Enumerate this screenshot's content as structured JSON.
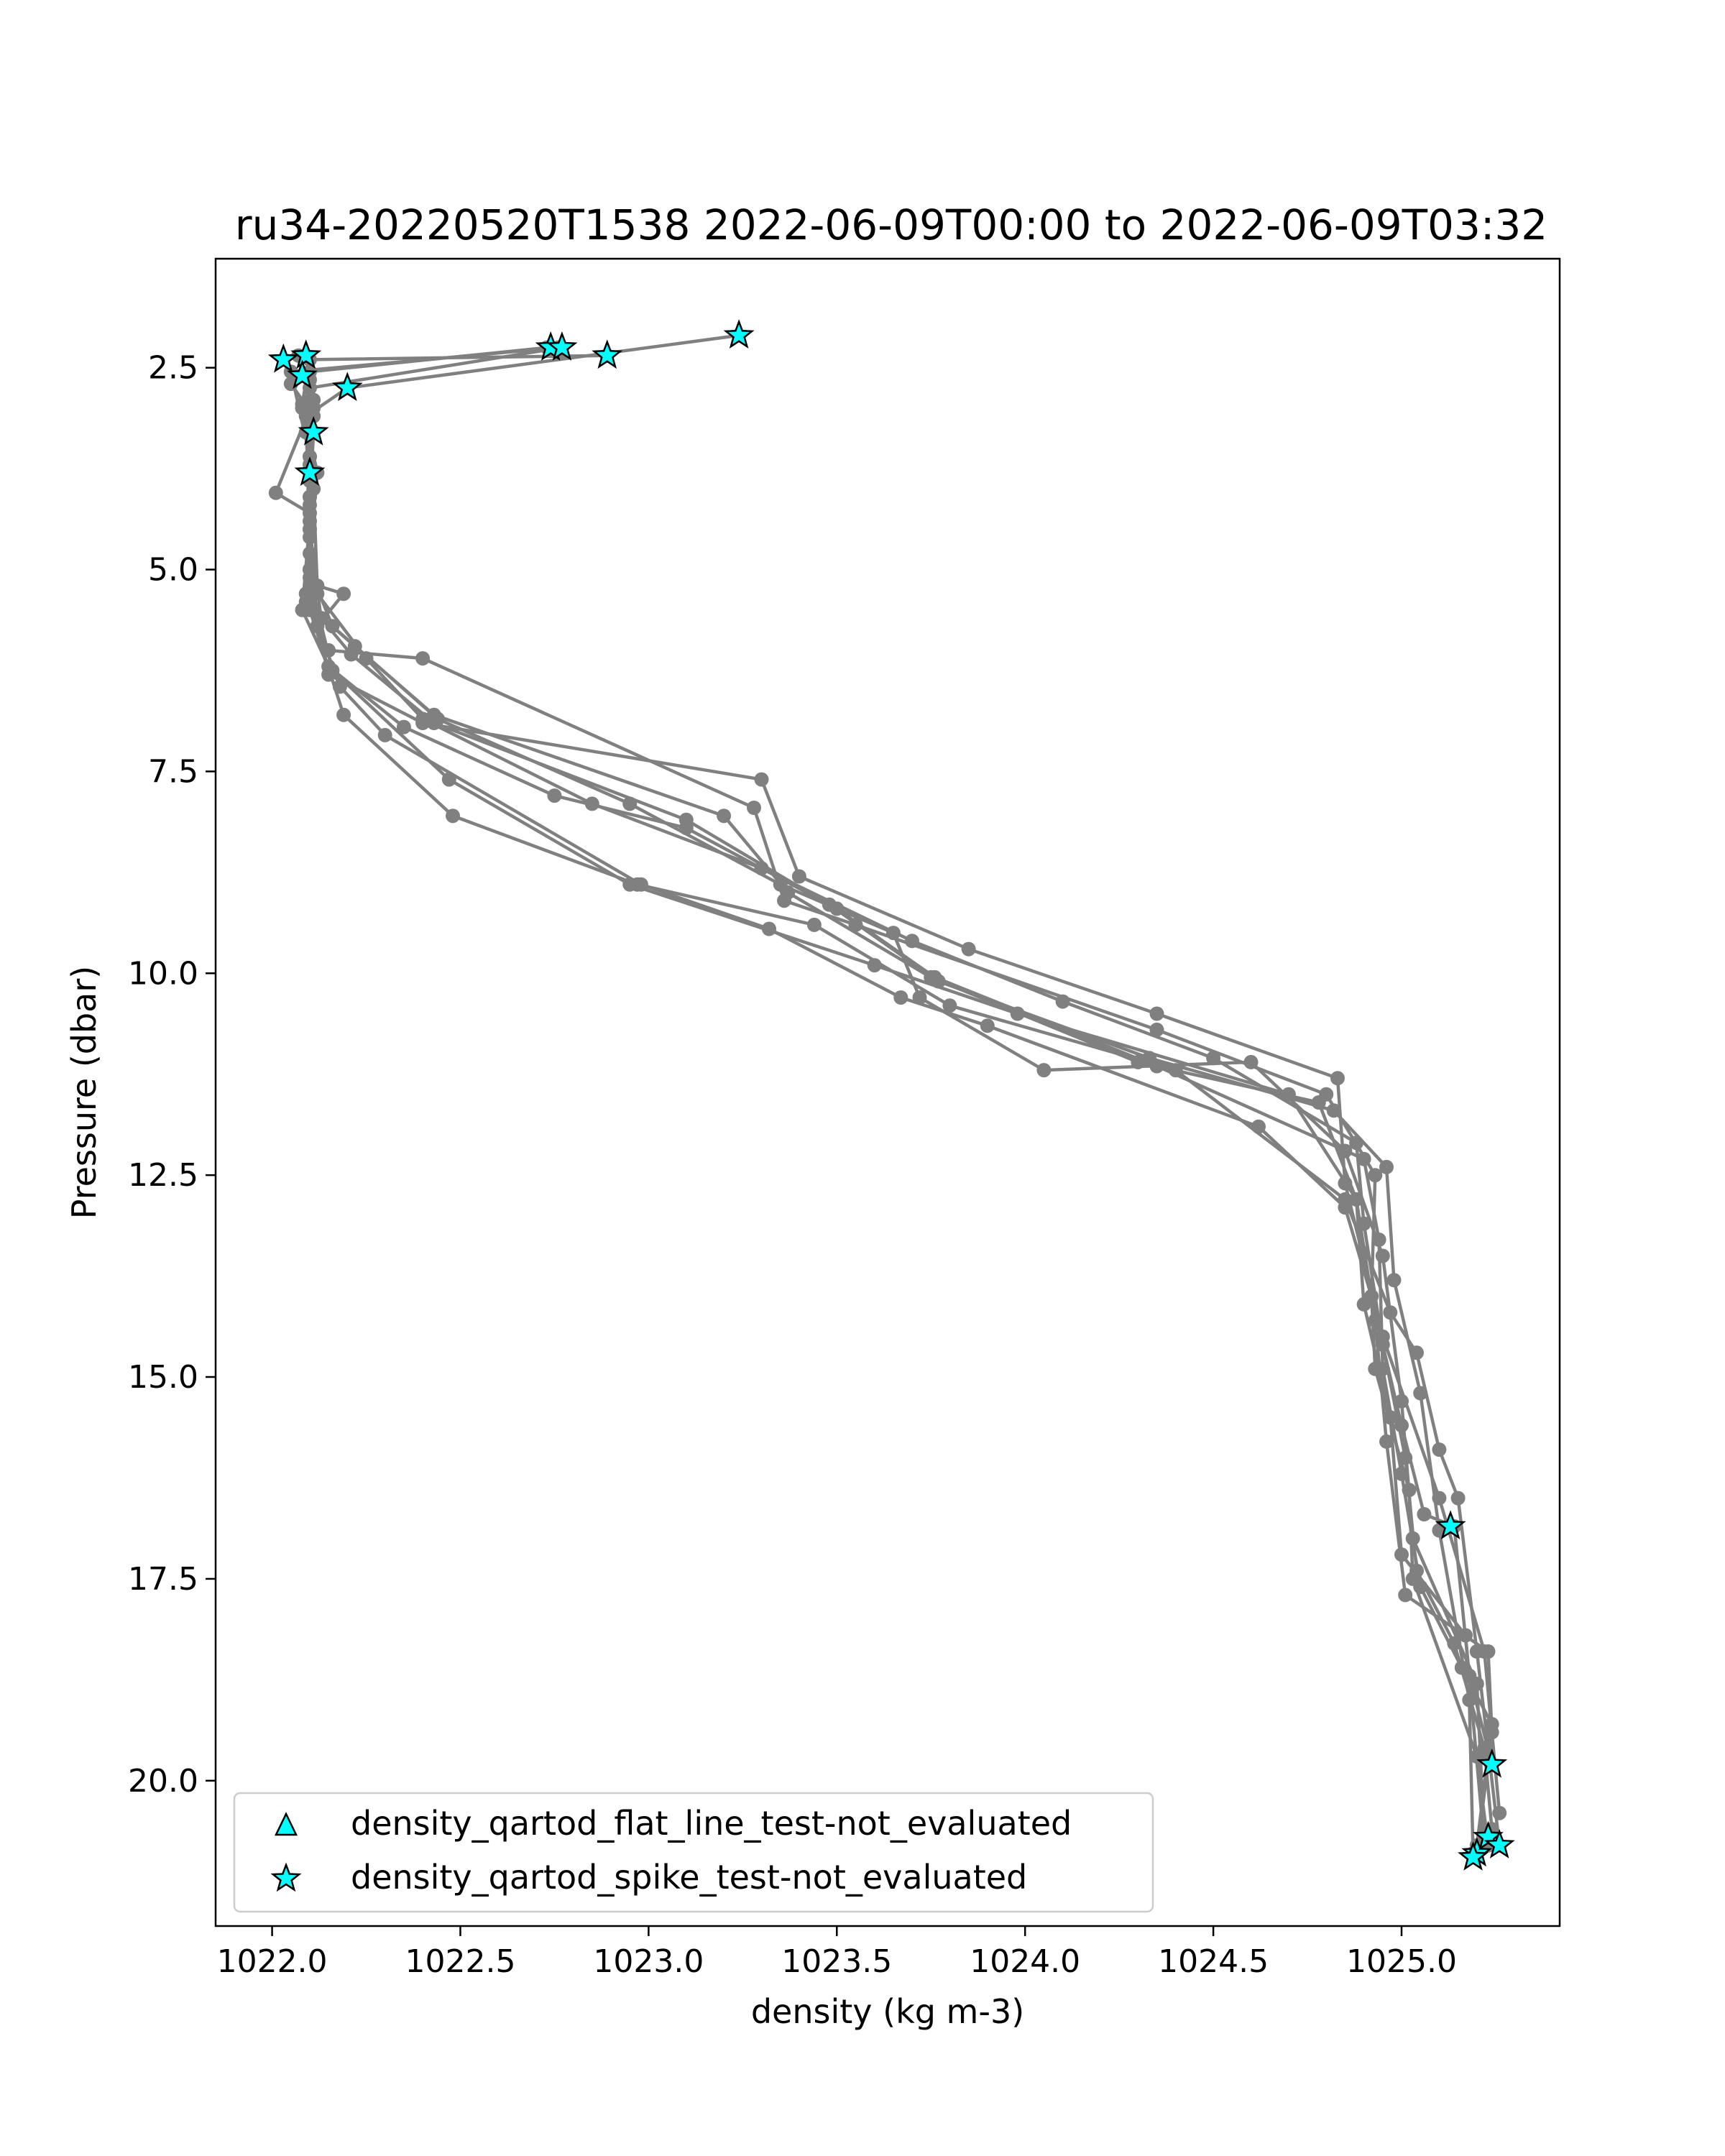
{
  "chart_data": {
    "type": "line",
    "title": "ru34-20220520T1538 2022-06-09T00:00 to 2022-06-09T03:32",
    "xlabel": "density (kg m-3)",
    "ylabel": "Pressure (dbar)",
    "xlim": [
      1021.85,
      1025.42
    ],
    "ylim": [
      21.8,
      1.15
    ],
    "y_inverted": true,
    "xticks": [
      1022.0,
      1022.5,
      1023.0,
      1023.5,
      1024.0,
      1024.5,
      1025.0
    ],
    "xtick_labels": [
      "1022.0",
      "1022.5",
      "1023.0",
      "1023.5",
      "1024.0",
      "1024.5",
      "1025.0"
    ],
    "yticks": [
      2.5,
      5.0,
      7.5,
      10.0,
      12.5,
      15.0,
      17.5,
      20.0
    ],
    "ytick_labels": [
      "2.5",
      "5.0",
      "7.5",
      "10.0",
      "12.5",
      "15.0",
      "17.5",
      "20.0"
    ],
    "grid": false,
    "legend_position": "lower-left",
    "colors": {
      "profile_line": "#808080",
      "marker_fill": "#00ffff",
      "marker_edge": "#000000"
    },
    "series": [
      {
        "points": [
          [
            1023.24,
            2.1
          ],
          [
            1022.2,
            2.75
          ],
          [
            1022.09,
            3.1
          ],
          [
            1022.11,
            4.0
          ],
          [
            1022.12,
            5.2
          ],
          [
            1022.19,
            5.3
          ],
          [
            1022.12,
            5.7
          ],
          [
            1022.15,
            6.3
          ],
          [
            1022.4,
            6.9
          ],
          [
            1023.3,
            7.6
          ],
          [
            1023.4,
            8.8
          ],
          [
            1023.85,
            9.7
          ],
          [
            1024.35,
            10.5
          ],
          [
            1024.83,
            11.3
          ],
          [
            1024.85,
            12.6
          ],
          [
            1024.95,
            14.5
          ],
          [
            1025.1,
            16.5
          ],
          [
            1025.22,
            18.4
          ],
          [
            1025.26,
            20.4
          ]
        ]
      },
      {
        "points": [
          [
            1022.76,
            2.25
          ],
          [
            1022.05,
            2.55
          ],
          [
            1022.1,
            3.6
          ],
          [
            1022.1,
            4.5
          ],
          [
            1022.09,
            5.4
          ],
          [
            1022.15,
            6.0
          ],
          [
            1022.4,
            6.1
          ],
          [
            1023.28,
            7.95
          ],
          [
            1023.36,
            9.1
          ],
          [
            1023.55,
            9.4
          ],
          [
            1024.35,
            10.7
          ],
          [
            1024.8,
            11.5
          ],
          [
            1024.93,
            12.5
          ],
          [
            1024.92,
            14.0
          ],
          [
            1025.0,
            15.6
          ],
          [
            1025.06,
            16.7
          ],
          [
            1025.14,
            16.85
          ],
          [
            1025.18,
            18.7
          ],
          [
            1025.24,
            19.8
          ]
        ]
      },
      {
        "points": [
          [
            1022.89,
            2.35
          ],
          [
            1022.1,
            2.4
          ],
          [
            1022.08,
            2.95
          ],
          [
            1022.12,
            3.8
          ],
          [
            1022.1,
            4.8
          ],
          [
            1022.11,
            5.5
          ],
          [
            1022.22,
            5.95
          ],
          [
            1022.43,
            6.8
          ],
          [
            1023.2,
            8.05
          ],
          [
            1023.37,
            9.0
          ],
          [
            1023.75,
            10.05
          ],
          [
            1024.3,
            11.1
          ],
          [
            1024.78,
            11.6
          ],
          [
            1024.88,
            12.8
          ],
          [
            1024.9,
            14.1
          ],
          [
            1024.97,
            15.5
          ],
          [
            1025.0,
            17.2
          ],
          [
            1025.17,
            18.2
          ],
          [
            1025.22,
            20.8
          ]
        ]
      },
      {
        "points": [
          [
            1022.73,
            2.25
          ],
          [
            1022.1,
            2.55
          ],
          [
            1022.1,
            3.3
          ],
          [
            1022.1,
            4.1
          ],
          [
            1022.1,
            5.0
          ],
          [
            1022.16,
            5.7
          ],
          [
            1022.44,
            6.85
          ],
          [
            1022.95,
            7.9
          ],
          [
            1023.35,
            8.9
          ],
          [
            1023.65,
            9.5
          ],
          [
            1023.72,
            10.3
          ],
          [
            1024.05,
            11.2
          ],
          [
            1024.6,
            11.1
          ],
          [
            1024.85,
            12.2
          ],
          [
            1024.95,
            13.5
          ],
          [
            1025.0,
            15.3
          ],
          [
            1025.03,
            17.0
          ],
          [
            1025.2,
            18.8
          ],
          [
            1025.22,
            20.7
          ]
        ]
      },
      {
        "points": [
          [
            1022.77,
            2.25
          ],
          [
            1022.1,
            2.75
          ],
          [
            1022.08,
            3.0
          ],
          [
            1022.1,
            3.7
          ],
          [
            1022.1,
            4.5
          ],
          [
            1022.13,
            5.6
          ],
          [
            1022.21,
            6.05
          ],
          [
            1022.43,
            6.9
          ],
          [
            1023.1,
            8.1
          ],
          [
            1023.48,
            9.15
          ],
          [
            1023.77,
            10.1
          ],
          [
            1024.33,
            11.05
          ],
          [
            1024.82,
            11.7
          ],
          [
            1024.96,
            12.4
          ],
          [
            1024.98,
            13.8
          ],
          [
            1025.05,
            15.2
          ],
          [
            1025.1,
            16.9
          ],
          [
            1025.18,
            19.0
          ],
          [
            1025.19,
            20.9
          ]
        ]
      },
      {
        "points": [
          [
            1022.07,
            2.35
          ],
          [
            1022.11,
            2.9
          ],
          [
            1022.01,
            4.05
          ],
          [
            1022.1,
            4.3
          ],
          [
            1022.09,
            5.3
          ],
          [
            1022.18,
            6.45
          ],
          [
            1022.3,
            7.05
          ],
          [
            1022.98,
            8.9
          ],
          [
            1023.32,
            9.45
          ],
          [
            1023.67,
            10.3
          ],
          [
            1023.9,
            10.65
          ],
          [
            1024.62,
            11.9
          ],
          [
            1024.85,
            12.9
          ],
          [
            1024.92,
            14.0
          ],
          [
            1024.93,
            14.9
          ],
          [
            1025.02,
            16.4
          ],
          [
            1025.03,
            17.5
          ],
          [
            1025.2,
            19.7
          ],
          [
            1025.23,
            20.8
          ]
        ]
      },
      {
        "points": [
          [
            1022.1,
            2.65
          ],
          [
            1022.11,
            3.0
          ],
          [
            1022.11,
            3.3
          ],
          [
            1022.1,
            4.2
          ],
          [
            1022.1,
            5.1
          ],
          [
            1022.16,
            6.25
          ],
          [
            1022.47,
            7.6
          ],
          [
            1022.95,
            8.9
          ],
          [
            1023.6,
            9.9
          ],
          [
            1023.98,
            10.5
          ],
          [
            1024.7,
            11.5
          ],
          [
            1024.88,
            12.8
          ],
          [
            1024.93,
            14.3
          ],
          [
            1024.96,
            15.8
          ],
          [
            1025.01,
            17.7
          ],
          [
            1025.23,
            18.4
          ],
          [
            1025.24,
            19.4
          ],
          [
            1025.2,
            20.9
          ]
        ]
      },
      {
        "points": [
          [
            1022.09,
            3.3
          ],
          [
            1022.1,
            4.1
          ],
          [
            1022.1,
            5.0
          ],
          [
            1022.1,
            5.5
          ],
          [
            1022.19,
            6.8
          ],
          [
            1022.48,
            8.05
          ],
          [
            1022.97,
            8.9
          ],
          [
            1023.44,
            9.4
          ],
          [
            1023.8,
            10.4
          ],
          [
            1024.4,
            11.2
          ],
          [
            1024.85,
            12.8
          ],
          [
            1024.97,
            14.2
          ],
          [
            1025.04,
            14.7
          ],
          [
            1025.1,
            15.9
          ],
          [
            1025.15,
            16.5
          ],
          [
            1025.2,
            18.4
          ],
          [
            1025.26,
            20.8
          ]
        ]
      },
      {
        "points": [
          [
            1022.1,
            3.6
          ],
          [
            1022.1,
            4.4
          ],
          [
            1022.08,
            5.5
          ],
          [
            1022.15,
            6.2
          ],
          [
            1022.35,
            6.95
          ],
          [
            1022.75,
            7.8
          ],
          [
            1023.1,
            8.2
          ],
          [
            1023.5,
            9.2
          ],
          [
            1023.76,
            10.05
          ],
          [
            1024.35,
            11.15
          ],
          [
            1024.9,
            12.3
          ],
          [
            1024.94,
            13.3
          ],
          [
            1024.95,
            14.9
          ],
          [
            1025.0,
            16.2
          ],
          [
            1025.05,
            17.6
          ],
          [
            1025.16,
            18.6
          ],
          [
            1025.24,
            19.3
          ],
          [
            1025.2,
            20.8
          ]
        ]
      },
      {
        "points": [
          [
            1022.05,
            2.7
          ],
          [
            1022.11,
            3.1
          ],
          [
            1022.1,
            3.9
          ],
          [
            1022.1,
            4.6
          ],
          [
            1022.12,
            5.3
          ],
          [
            1022.25,
            6.1
          ],
          [
            1022.4,
            6.85
          ],
          [
            1022.85,
            7.9
          ],
          [
            1023.3,
            8.7
          ],
          [
            1023.7,
            9.6
          ],
          [
            1024.1,
            10.35
          ],
          [
            1024.5,
            11.05
          ],
          [
            1024.88,
            12.1
          ],
          [
            1024.9,
            13.1
          ],
          [
            1024.95,
            14.6
          ],
          [
            1025.01,
            16.0
          ],
          [
            1025.04,
            17.4
          ],
          [
            1025.14,
            18.3
          ],
          [
            1025.22,
            19.6
          ],
          [
            1025.24,
            20.6
          ]
        ]
      }
    ],
    "flat_line_test_not_evaluated": [],
    "spike_test_not_evaluated": [
      [
        1022.03,
        2.4
      ],
      [
        1022.09,
        2.35
      ],
      [
        1022.08,
        2.6
      ],
      [
        1022.2,
        2.75
      ],
      [
        1022.74,
        2.25
      ],
      [
        1022.77,
        2.25
      ],
      [
        1022.89,
        2.35
      ],
      [
        1023.24,
        2.1
      ],
      [
        1022.11,
        3.3
      ],
      [
        1022.1,
        3.8
      ],
      [
        1025.13,
        16.85
      ],
      [
        1025.24,
        19.8
      ],
      [
        1025.2,
        20.9
      ],
      [
        1025.23,
        20.7
      ],
      [
        1025.26,
        20.8
      ],
      [
        1025.19,
        20.95
      ]
    ],
    "legend": [
      {
        "label": "density_qartod_flat_line_test-not_evaluated",
        "marker": "triangle"
      },
      {
        "label": "density_qartod_spike_test-not_evaluated",
        "marker": "star"
      }
    ]
  }
}
